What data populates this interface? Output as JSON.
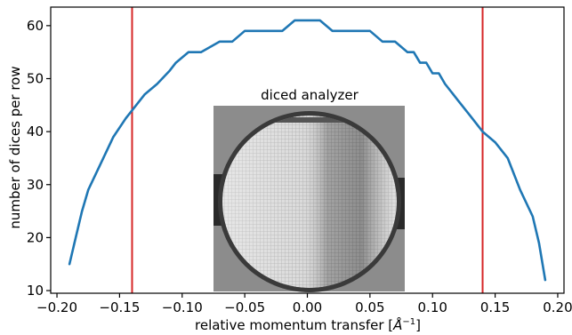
{
  "chart_data": {
    "type": "line",
    "title": "",
    "xlabel": "relative momentum transfer [",
    "xlabel_unit": "Å",
    "xlabel_exp": "−1",
    "xlabel_end": "]",
    "ylabel": "number of dices per row",
    "xlim": [
      -0.205,
      0.205
    ],
    "ylim": [
      9.5,
      63.5
    ],
    "xticks": [
      -0.2,
      -0.15,
      -0.1,
      -0.05,
      0.0,
      0.05,
      0.1,
      0.15,
      0.2
    ],
    "xtick_labels": [
      "−0.20",
      "−0.15",
      "−0.10",
      "−0.05",
      "0.00",
      "0.05",
      "0.10",
      "0.15",
      "0.20"
    ],
    "yticks": [
      10,
      20,
      30,
      40,
      50,
      60
    ],
    "ytick_labels": [
      "10",
      "20",
      "30",
      "40",
      "50",
      "60"
    ],
    "grid": false,
    "series": [
      {
        "color": "#1f77b4",
        "x": [
          -0.19,
          -0.185,
          -0.18,
          -0.175,
          -0.165,
          -0.155,
          -0.145,
          -0.13,
          -0.12,
          -0.11,
          -0.105,
          -0.095,
          -0.085,
          -0.07,
          -0.06,
          -0.05,
          -0.03,
          -0.02,
          -0.01,
          0.0,
          0.01,
          0.02,
          0.03,
          0.05,
          0.06,
          0.07,
          0.08,
          0.085,
          0.09,
          0.095,
          0.1,
          0.105,
          0.11,
          0.12,
          0.13,
          0.14,
          0.15,
          0.16,
          0.17,
          0.18,
          0.185,
          0.19
        ],
        "y": [
          15,
          20,
          25,
          29,
          34,
          39,
          42.5,
          47,
          49,
          51.5,
          53,
          55,
          55,
          57,
          57,
          59,
          59,
          59,
          61,
          61,
          61,
          59,
          59,
          59,
          57,
          57,
          55,
          55,
          53,
          53,
          51,
          51,
          49,
          46,
          43,
          40,
          38,
          35,
          29,
          24,
          19,
          12
        ]
      }
    ],
    "vlines": [
      {
        "x": -0.14,
        "color": "#d62728"
      },
      {
        "x": 0.14,
        "color": "#d62728"
      }
    ],
    "inset": {
      "title": "diced analyzer",
      "image_description": "diced-analyzer-photo"
    }
  }
}
